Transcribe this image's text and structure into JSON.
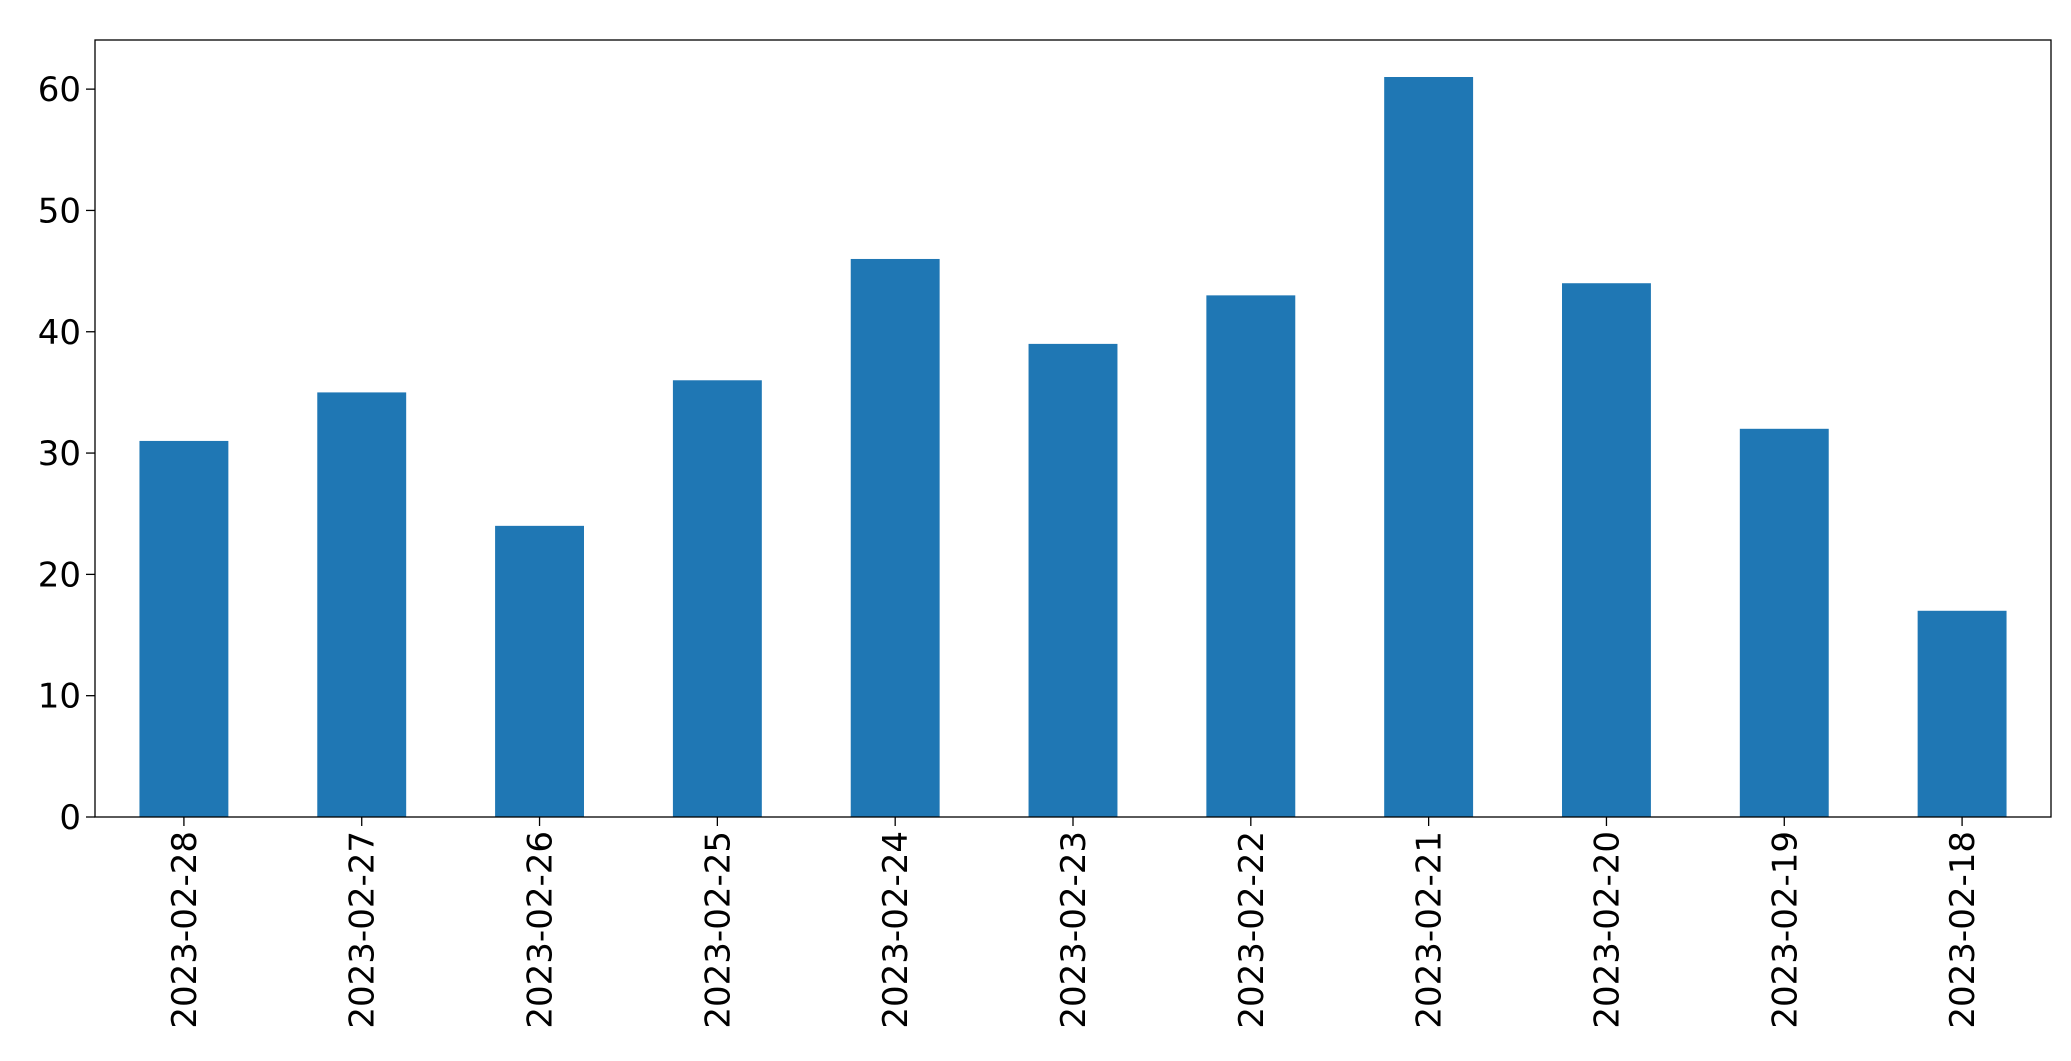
{
  "chart_data": {
    "type": "bar",
    "categories": [
      "2023-02-28",
      "2023-02-27",
      "2023-02-26",
      "2023-02-25",
      "2023-02-24",
      "2023-02-23",
      "2023-02-22",
      "2023-02-21",
      "2023-02-20",
      "2023-02-19",
      "2023-02-18"
    ],
    "values": [
      31,
      35,
      24,
      36,
      46,
      39,
      43,
      61,
      44,
      32,
      17
    ],
    "color": "#1f77b4",
    "ylim": [
      0,
      64.05
    ],
    "yticks": [
      0,
      10,
      20,
      30,
      40,
      50,
      60
    ],
    "grid": false
  }
}
